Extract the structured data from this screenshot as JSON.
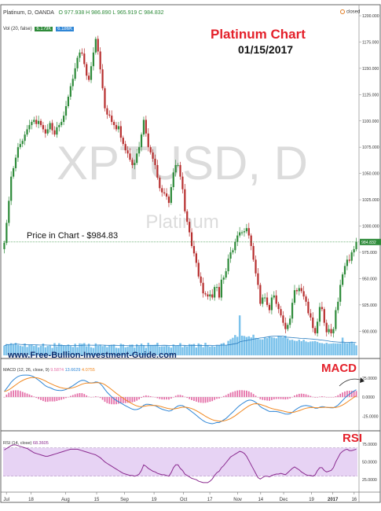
{
  "header": {
    "title": "Platinum Chart",
    "date": "01/15/2017",
    "symbol_text": "Platinum, D, OANDA",
    "ohlc_text": "O 977.938 H 986.890 L 965.919 C 984.832",
    "volume_label": "Vol (20, false)",
    "volume_values": [
      "6.179K",
      "6.186K"
    ],
    "market_status": "closed",
    "watermark_symbol": "XPTUSD, D",
    "watermark_name": "Platinum"
  },
  "annotations": {
    "price_note": "Price in Chart - $984.83",
    "site": "www.Free-Bullion-Investment-Guide.com",
    "macd_label": "MACD",
    "rsi_label": "RSI",
    "current_price_tag": "984.832"
  },
  "colors": {
    "title_red": "#e4202a",
    "up_candle": "#2e8b3a",
    "down_candle": "#b72f2f",
    "volume": "#5ab3e6",
    "macd_line": "#2f86d6",
    "signal_line": "#f0871f",
    "histogram": "#e46ea7",
    "rsi_line": "#8a2a8f",
    "rsi_band": "#e7d3f4"
  },
  "chart_data": {
    "type": "candlestick",
    "x_ticks": [
      "Jul",
      "18",
      "Aug",
      "15",
      "Sep",
      "19",
      "Oct",
      "17",
      "Nov",
      "14",
      "Dec",
      "19",
      "2017",
      "16"
    ],
    "price_ticks": [
      "1200.000",
      "1175.000",
      "1150.000",
      "1125.000",
      "1100.000",
      "1075.000",
      "1050.000",
      "1025.000",
      "1000.000",
      "975.000",
      "950.000",
      "925.000",
      "900.000"
    ],
    "price_range": [
      886,
      1203
    ],
    "last_price": 984.832,
    "series": [
      {
        "name": "Platinum",
        "close": [
          984.0,
          1003.0,
          1024.0,
          1047.0,
          1055.0,
          1065.0,
          1075.0,
          1078.0,
          1081.0,
          1087.0,
          1092.0,
          1096.0,
          1099.0,
          1101.0,
          1097.0,
          1100.0,
          1096.0,
          1092.0,
          1088.0,
          1092.0,
          1098.0,
          1091.0,
          1087.0,
          1094.0,
          1096.0,
          1099.0,
          1105.0,
          1114.0,
          1123.0,
          1133.0,
          1140.0,
          1150.0,
          1160.0,
          1165.0,
          1164.0,
          1154.0,
          1143.0,
          1139.0,
          1152.0,
          1165.0,
          1178.0,
          1166.0,
          1149.0,
          1131.0,
          1112.0,
          1106.0,
          1105.0,
          1099.0,
          1096.0,
          1092.0,
          1095.0,
          1084.0,
          1078.0,
          1072.0,
          1069.0,
          1063.0,
          1058.0,
          1060.0,
          1069.0,
          1075.0,
          1087.0,
          1101.0,
          1088.0,
          1075.0,
          1070.0,
          1064.0,
          1058.0,
          1046.0,
          1036.0,
          1032.0,
          1031.0,
          1028.0,
          1022.0,
          1037.0,
          1051.0,
          1058.0,
          1058.0,
          1047.0,
          1035.0,
          1014.0,
          1004.0,
          994.0,
          981.0,
          974.0,
          965.0,
          952.0,
          946.0,
          936.0,
          935.0,
          933.0,
          935.0,
          932.0,
          942.0,
          942.0,
          932.0,
          949.0,
          951.0,
          957.0,
          969.0,
          975.0,
          977.0,
          985.0,
          991.0,
          994.0,
          994.0,
          995.0,
          998.0,
          991.0,
          981.0,
          968.0,
          955.0,
          944.0,
          926.0,
          932.0,
          932.0,
          925.0,
          920.0,
          932.0,
          934.0,
          926.0,
          921.0,
          915.0,
          908.0,
          902.0,
          906.0,
          912.0,
          927.0,
          939.0,
          938.0,
          941.0,
          938.0,
          933.0,
          928.0,
          917.0,
          913.0,
          903.0,
          898.0,
          909.0,
          923.0,
          921.0,
          908.0,
          899.0,
          902.0,
          898.0,
          902.0,
          920.0,
          928.0,
          944.0,
          954.0,
          962.0,
          968.0,
          967.0,
          975.0,
          978.0,
          984.8
        ]
      },
      {
        "name": "Vol (20, false)",
        "values": [
          6.0,
          7.0,
          6.9,
          7.5,
          6.9,
          7.7,
          6.4,
          6.0,
          5.6,
          7.3,
          5.2,
          6.6,
          6.8,
          5.8,
          6.3,
          5.0,
          5.9,
          7.3,
          5.0,
          5.8,
          6.1,
          4.6,
          7.6,
          5.6,
          7.5,
          6.7,
          6.3,
          5.9,
          6.7,
          5.8,
          5.2,
          7.2,
          5.1,
          7.4,
          7.2,
          7.6,
          5.6,
          7.2,
          5.0,
          4.6,
          7.4,
          6.0,
          6.7,
          5.7,
          6.4,
          5.1,
          6.2,
          6.5,
          6.7,
          4.7,
          4.5,
          7.2,
          6.7,
          5.0,
          5.3,
          6.6,
          6.7,
          4.8,
          6.9,
          5.8,
          7.3,
          6.4,
          4.7,
          7.8,
          6.5,
          6.5,
          6.6,
          7.8,
          5.4,
          5.6,
          5.6,
          6.0,
          5.6,
          4.8,
          6.7,
          5.9,
          6.1,
          7.6,
          5.1,
          6.0,
          5.6,
          7.0,
          6.7,
          7.1,
          4.9,
          7.4,
          6.7,
          5.1,
          7.8,
          6.1,
          5.4,
          5.8,
          5.4,
          6.4,
          6.3,
          7.3,
          7.7,
          6.2,
          9.0,
          10.0,
          10.9,
          12.6,
          11.5,
          24.8,
          12.2,
          12.0,
          11.4,
          11.8,
          11.1,
          12.8,
          10.8,
          10.7,
          10.0,
          9.9,
          11.2,
          10.7,
          11.9,
          11.2,
          11.0,
          10.6,
          11.8,
          11.7,
          11.3,
          12.2,
          10.5,
          9.5,
          9.7,
          9.1,
          8.9,
          9.7,
          8.8,
          9.7,
          8.6,
          8.2,
          8.6,
          8.7,
          8.9,
          8.4,
          7.7,
          7.6,
          7.2,
          7.8,
          7.2,
          7.3,
          7.5,
          7.4,
          7.4,
          7.4,
          11.0,
          7.8,
          7.6,
          8.1,
          8.5,
          7.6,
          6.2
        ]
      },
      {
        "name": "MACD (12, 26, close, 9)",
        "values": [
          7.3,
          11.3,
          15.2,
          19.4,
          22.4,
          24.8,
          26.9,
          28.0,
          28.5,
          28.8,
          28.8,
          28.4,
          27.6,
          26.3,
          24.2,
          22.2,
          19.8,
          17.3,
          14.8,
          13.2,
          12.3,
          10.9,
          9.5,
          8.9,
          8.7,
          8.6,
          9.0,
          9.9,
          11.3,
          13.1,
          14.8,
          16.8,
          19.0,
          20.8,
          21.9,
          21.8,
          20.5,
          18.9,
          18.5,
          18.8,
          19.8,
          19.4,
          17.4,
          14.1,
          10.0,
          6.2,
          3.1,
          0.3,
          -2.2,
          -4.5,
          -6.0,
          -7.8,
          -9.6,
          -11.4,
          -12.9,
          -14.4,
          -15.8,
          -16.5,
          -16.3,
          -15.4,
          -13.6,
          -10.8,
          -9.5,
          -9.5,
          -9.8,
          -10.5,
          -11.4,
          -12.9,
          -14.5,
          -15.9,
          -16.8,
          -17.6,
          -18.5,
          -17.7,
          -15.7,
          -13.5,
          -11.7,
          -11.0,
          -11.3,
          -12.8,
          -14.6,
          -16.7,
          -19.1,
          -21.4,
          -23.8,
          -26.5,
          -28.7,
          -30.9,
          -32.6,
          -33.7,
          -34.4,
          -34.9,
          -34.2,
          -33.3,
          -33.4,
          -31.7,
          -29.9,
          -28.0,
          -25.2,
          -22.3,
          -19.6,
          -16.7,
          -13.7,
          -11.0,
          -8.8,
          -6.9,
          -5.1,
          -4.1,
          -4.1,
          -5.1,
          -6.9,
          -9.2,
          -12.4,
          -14.3,
          -15.8,
          -17.4,
          -18.9,
          -18.9,
          -18.7,
          -19.0,
          -19.5,
          -20.3,
          -21.2,
          -22.2,
          -22.4,
          -21.9,
          -20.0,
          -17.5,
          -15.5,
          -13.6,
          -12.2,
          -11.4,
          -11.1,
          -11.6,
          -12.2,
          -13.3,
          -14.5,
          -14.5,
          -13.3,
          -12.5,
          -12.8,
          -13.6,
          -13.8,
          -14.1,
          -14.0,
          -12.5,
          -10.6,
          -7.6,
          -4.4,
          -1.3,
          1.6,
          3.7,
          5.9,
          7.9,
          9.6
        ]
      },
      {
        "name": "Signal",
        "values": [
          7.3,
          8.1,
          9.5,
          11.5,
          13.7,
          15.9,
          18.1,
          20.0,
          21.7,
          23.1,
          24.2,
          25.0,
          25.5,
          25.6,
          25.3,
          24.7,
          23.7,
          22.5,
          21.0,
          19.4,
          18.0,
          16.6,
          15.2,
          14.0,
          12.9,
          12.1,
          11.5,
          11.2,
          11.2,
          11.6,
          12.2,
          13.1,
          14.3,
          15.6,
          16.8,
          17.8,
          18.3,
          18.4,
          18.4,
          18.5,
          18.8,
          18.9,
          18.6,
          17.7,
          16.2,
          14.2,
          12.0,
          9.7,
          7.3,
          4.9,
          2.7,
          0.6,
          -1.5,
          -3.5,
          -5.4,
          -7.2,
          -8.9,
          -10.4,
          -11.6,
          -12.4,
          -12.6,
          -12.2,
          -11.7,
          -11.2,
          -10.9,
          -10.9,
          -11.0,
          -11.4,
          -12.0,
          -12.8,
          -13.6,
          -14.4,
          -15.2,
          -15.7,
          -15.7,
          -15.2,
          -14.5,
          -13.8,
          -13.3,
          -13.2,
          -13.5,
          -14.1,
          -15.1,
          -16.3,
          -17.8,
          -19.5,
          -21.3,
          -23.2,
          -25.1,
          -26.8,
          -28.3,
          -29.6,
          -30.5,
          -31.0,
          -31.5,
          -31.5,
          -31.2,
          -30.5,
          -29.5,
          -28.1,
          -26.4,
          -24.5,
          -22.3,
          -20.0,
          -17.8,
          -15.6,
          -13.5,
          -11.6,
          -10.1,
          -9.1,
          -8.7,
          -8.8,
          -9.6,
          -10.6,
          -11.6,
          -12.8,
          -14.0,
          -15.0,
          -15.7,
          -16.4,
          -17.0,
          -17.6,
          -18.3,
          -19.1,
          -19.7,
          -20.1,
          -20.1,
          -19.6,
          -18.8,
          -17.8,
          -16.7,
          -15.6,
          -14.7,
          -14.1,
          -13.7,
          -13.6,
          -13.8,
          -13.9,
          -13.8,
          -13.5,
          -13.4,
          -13.4,
          -13.5,
          -13.6,
          -13.7,
          -13.5,
          -13.0,
          -11.9,
          -10.4,
          -8.6,
          -6.6,
          -4.5,
          -2.4,
          -0.4,
          1.6
        ]
      },
      {
        "name": "RSI (14, close)",
        "values": [
          67,
          69,
          71,
          73,
          74,
          74,
          73,
          72,
          71,
          70,
          69,
          67,
          65,
          63,
          62,
          61,
          60,
          59,
          58,
          58,
          59,
          60,
          61,
          62,
          63,
          64,
          65,
          66,
          67,
          68,
          68,
          68,
          68,
          67,
          66,
          65,
          64,
          63,
          62,
          61,
          60,
          58,
          56,
          53,
          50,
          48,
          46,
          44,
          42,
          40,
          38,
          36,
          34,
          33,
          32,
          31,
          31,
          30,
          31,
          33,
          38,
          46,
          44,
          41,
          39,
          37,
          36,
          34,
          33,
          32,
          32,
          31,
          30,
          35,
          42,
          46,
          46,
          41,
          38,
          33,
          31,
          29,
          27,
          26,
          25,
          23,
          22,
          21,
          21,
          21,
          23,
          26,
          31,
          35,
          37,
          42,
          45,
          49,
          53,
          57,
          59,
          61,
          63,
          65,
          64,
          62,
          58,
          52,
          46,
          40,
          34,
          28,
          26,
          28,
          30,
          30,
          29,
          31,
          32,
          33,
          33,
          34,
          33,
          32,
          35,
          38,
          41,
          43,
          41,
          39,
          36,
          34,
          32,
          31,
          31,
          30,
          32,
          38,
          42,
          42,
          38,
          36,
          37,
          38,
          42,
          50,
          56,
          62,
          65,
          67,
          68,
          66,
          66,
          67,
          68
        ]
      }
    ],
    "macd_ticks": [
      "25.0000",
      "0.0000",
      "-25.0000"
    ],
    "macd_legend": "MACD (12, 26, close, 9)",
    "macd_values_text": [
      "9.5874",
      "13.6629",
      "4.0755"
    ],
    "rsi_ticks": [
      "75.0000",
      "50.0000",
      "25.0000"
    ],
    "rsi_legend": "RSI (14, close)",
    "rsi_value_text": "68.3605",
    "rsi_band": [
      30,
      70
    ]
  }
}
